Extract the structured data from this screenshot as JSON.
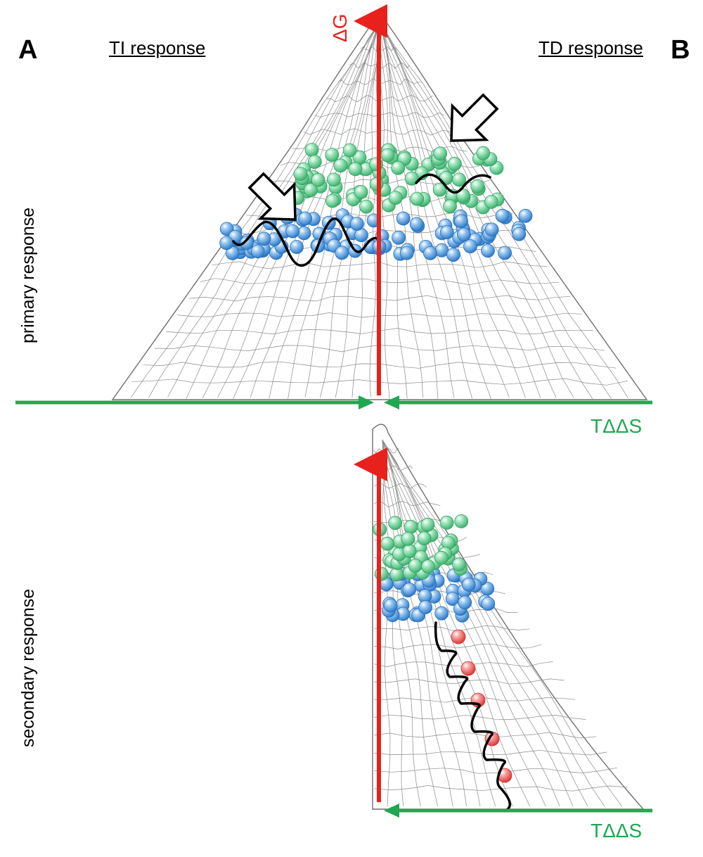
{
  "panels": {
    "a_label": "A",
    "b_label": "B"
  },
  "columns": {
    "left_title": "TI response",
    "right_title": "TD response"
  },
  "rows": {
    "top_title": "primary response",
    "bottom_title": "secondary response"
  },
  "axes": {
    "energy_label": "ΔG",
    "entropy_label_top": "TΔΔS",
    "entropy_label_bottom": "TΔΔS"
  },
  "colors": {
    "energy_axis": "#e8211c",
    "entropy_axis": "#1fa84f",
    "green_sphere": "#6ed39a",
    "blue_sphere": "#5aa0de",
    "red_sphere": "#f06464",
    "mesh": "#8a8a8a"
  },
  "icons": {
    "pointer_arrow": "hollow-arrow-icon"
  }
}
